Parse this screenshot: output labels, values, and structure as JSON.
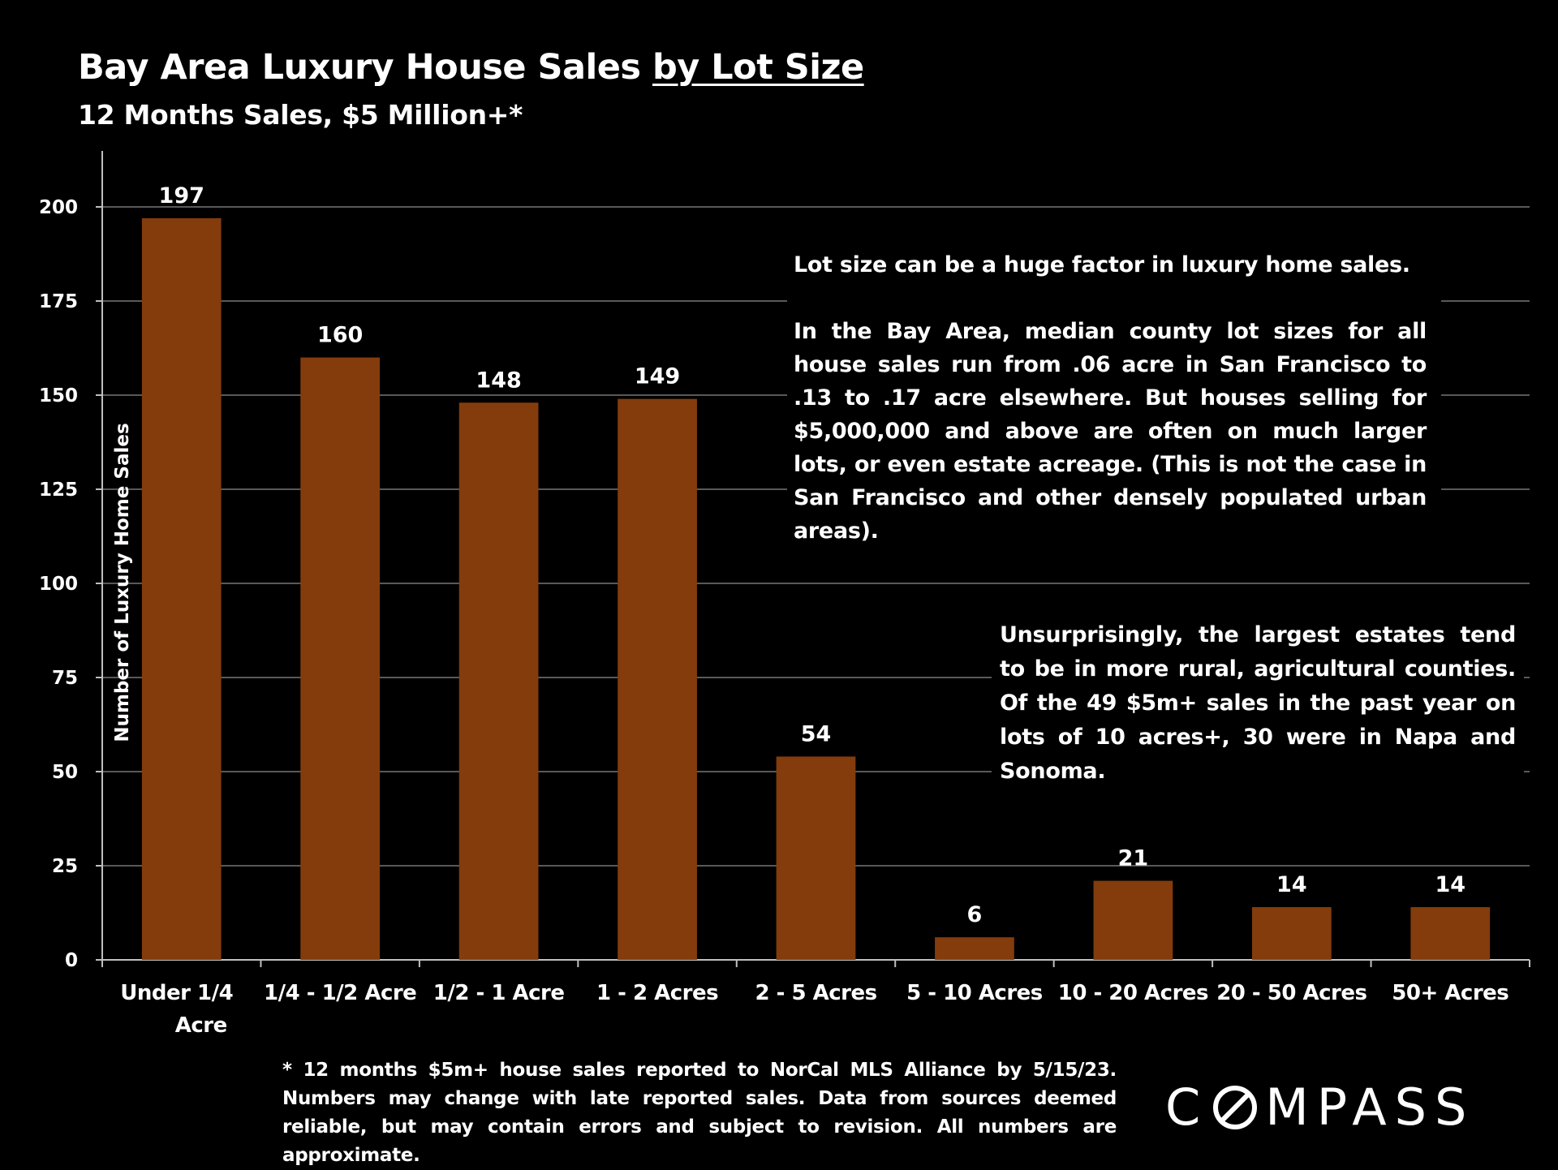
{
  "title": {
    "main": "Bay Area Luxury House Sales ",
    "underlined": "by Lot Size"
  },
  "subtitle": "12 Months Sales, $5 Million+*",
  "chart_data": {
    "type": "bar",
    "categories": [
      "Under 1/4 Acre",
      "1/4 - 1/2 Acre",
      "1/2 - 1 Acre",
      "1 - 2 Acres",
      "2 - 5 Acres",
      "5 - 10 Acres",
      "10 - 20 Acres",
      "20 - 50 Acres",
      "50+ Acres"
    ],
    "category_lines": [
      [
        "Under 1/4",
        "Acre"
      ],
      [
        "1/4 - 1/2 Acre"
      ],
      [
        "1/2 - 1 Acre"
      ],
      [
        "1 - 2 Acres"
      ],
      [
        "2 - 5 Acres"
      ],
      [
        "5 - 10 Acres"
      ],
      [
        "10 - 20 Acres"
      ],
      [
        "20 - 50 Acres"
      ],
      [
        "50+ Acres"
      ]
    ],
    "values": [
      197,
      160,
      148,
      149,
      54,
      6,
      21,
      14,
      14
    ],
    "ylabel": "Number of Luxury Home Sales",
    "xlabel": "",
    "ylim": [
      0,
      210
    ],
    "yticks": [
      0,
      25,
      50,
      75,
      100,
      125,
      150,
      175,
      200
    ],
    "grid": true,
    "bar_color": "#843C0C",
    "grid_color": "#595959",
    "data_labels": true
  },
  "notes": {
    "lead": "Lot size can be a huge factor in luxury home sales.",
    "body": "In the Bay Area, median county lot sizes for all house sales run from .06 acre in San Francisco to .13 to .17 acre elsewhere. But houses selling for $5,000,000 and above are often on much larger lots, or even estate acreage. (This is not the case in San Francisco and other densely populated urban areas).",
    "second": "Unsurprisingly, the largest estates tend to be in more rural, agricultural counties. Of the 49 $5m+ sales in the past year on lots of 10 acres+, 30 were in Napa and Sonoma."
  },
  "footnote": "* 12 months $5m+ house sales reported to NorCal MLS Alliance by 5/15/23. Numbers may change with late reported sales. Data from sources deemed reliable, but may contain errors and subject to revision. All numbers are approximate.",
  "logo": {
    "part1": "C",
    "part2": "MPASS",
    "alt": "COMPASS"
  }
}
